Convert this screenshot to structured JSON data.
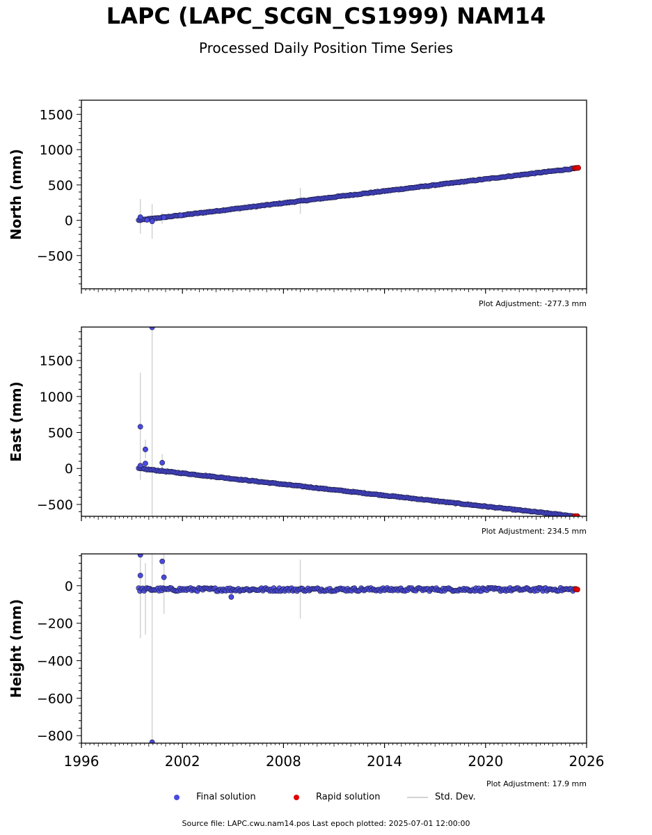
{
  "title": "LAPC (LAPC_SCGN_CS1999) NAM14",
  "subtitle": "Processed Daily Position Time Series",
  "chart_data": {
    "type": "scatter",
    "x_axis": {
      "ticks": [
        1996,
        2002,
        2008,
        2014,
        2020,
        2026
      ],
      "range": [
        1996,
        2026
      ]
    },
    "panels": [
      {
        "ylabel": "North (mm)",
        "ylim": [
          -970,
          1700
        ],
        "yticks": [
          -500,
          0,
          500,
          1000,
          1500
        ],
        "adjustment": "Plot Adjustment: -277.3 mm",
        "final_trend": {
          "start": [
            1999.4,
            0
          ],
          "end": [
            2025.35,
            735
          ]
        },
        "noise": 6,
        "outliers": [
          [
            1999.5,
            45
          ],
          [
            1999.9,
            5
          ],
          [
            2000.2,
            -15
          ],
          [
            2000.9,
            40
          ],
          [
            2001.9,
            70
          ]
        ],
        "error_bars": [
          [
            1999.5,
            -190,
            300
          ],
          [
            2000.2,
            -260,
            230
          ],
          [
            2000.8,
            -50,
            110
          ],
          [
            2009.0,
            90,
            460
          ]
        ],
        "rapid": [
          [
            2025.3,
            738
          ],
          [
            2025.4,
            740
          ],
          [
            2025.5,
            742
          ]
        ]
      },
      {
        "ylabel": "East (mm)",
        "ylim": [
          -665,
          1965
        ],
        "yticks": [
          -500,
          0,
          500,
          1000,
          1500
        ],
        "adjustment": "Plot Adjustment: 234.5 mm",
        "final_trend": {
          "start": [
            1999.4,
            0
          ],
          "end": [
            2025.35,
            -665
          ]
        },
        "noise": 6,
        "outliers": [
          [
            1999.5,
            580
          ],
          [
            1999.8,
            265
          ],
          [
            1999.8,
            70
          ],
          [
            2000.2,
            1960
          ],
          [
            2000.8,
            80
          ],
          [
            1999.5,
            40
          ]
        ],
        "error_bars": [
          [
            1999.5,
            -160,
            1330
          ],
          [
            1999.8,
            140,
            400
          ],
          [
            2000.2,
            -665,
            1965
          ],
          [
            2000.8,
            -10,
            200
          ]
        ],
        "rapid": [
          [
            2025.3,
            -663
          ],
          [
            2025.45,
            -664
          ]
        ]
      },
      {
        "ylabel": "Height (mm)",
        "ylim": [
          -840,
          170
        ],
        "yticks": [
          -800,
          -600,
          -400,
          -200,
          0
        ],
        "adjustment": "Plot Adjustment: 17.9 mm",
        "final_trend": {
          "start": [
            1999.4,
            -20
          ],
          "end": [
            2025.35,
            -20
          ]
        },
        "noise": 9,
        "outliers": [
          [
            1999.5,
            165
          ],
          [
            1999.5,
            55
          ],
          [
            2000.8,
            130
          ],
          [
            2000.9,
            45
          ],
          [
            2004.9,
            -60
          ],
          [
            2000.2,
            -835
          ]
        ],
        "error_bars": [
          [
            1999.5,
            -280,
            170
          ],
          [
            1999.8,
            -260,
            120
          ],
          [
            2000.2,
            -840,
            170
          ],
          [
            2000.9,
            -150,
            170
          ],
          [
            2009.0,
            -175,
            140
          ]
        ],
        "rapid": [
          [
            2025.35,
            -18
          ],
          [
            2025.45,
            -20
          ]
        ]
      }
    ]
  },
  "legend": {
    "final": "Final solution",
    "rapid": "Rapid solution",
    "stddev": "Std. Dev.",
    "colors": {
      "final": "#4a4ae0",
      "final_edge": "#1a1a3a",
      "rapid": "#e00000",
      "stddev": "#d3d3d3"
    }
  },
  "source": "Source file: LAPC.cwu.nam14.pos  Last epoch plotted: 2025-07-01 12:00:00"
}
